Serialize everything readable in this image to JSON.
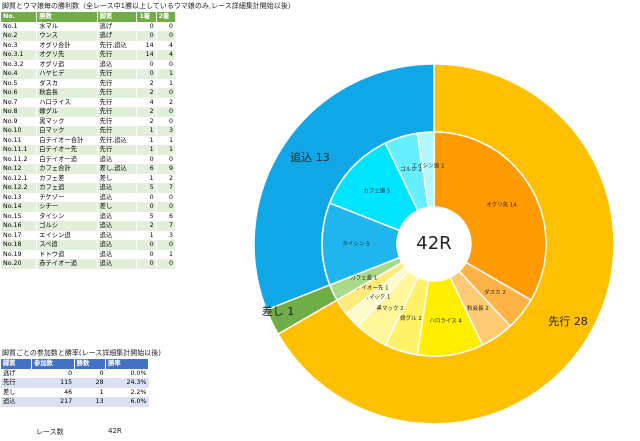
{
  "title": "脚質とウマ娘毎の勝利数（全レース中1勝以上しているウマ娘のみ,レース詳細集計開始以後）",
  "table1": {
    "headers": [
      "No.",
      "勝数",
      "脚質",
      "1着",
      "2着"
    ],
    "rows": [
      [
        "No.1",
        "水マル",
        "逃げ",
        "0",
        "0"
      ],
      [
        "No.2",
        "ウンス",
        "逃げ",
        "0",
        "0"
      ],
      [
        "No.3",
        "オグリ合計",
        "先行,追込",
        "14",
        "4"
      ],
      [
        "No.3.1",
        "オグリ先",
        "先行",
        "14",
        "4"
      ],
      [
        "No.3.2",
        "オグリ追",
        "追込",
        "0",
        "0"
      ],
      [
        "No.4",
        "ハヤヒデ",
        "先行",
        "0",
        "1"
      ],
      [
        "No.5",
        "ダスカ",
        "先行",
        "2",
        "1"
      ],
      [
        "No.6",
        "秋会長",
        "先行",
        "2",
        "0"
      ],
      [
        "No.7",
        "ハロライス",
        "先行",
        "4",
        "2"
      ],
      [
        "No.8",
        "嫁グル",
        "先行",
        "2",
        "0"
      ],
      [
        "No.9",
        "黒マック",
        "先行",
        "2",
        "0"
      ],
      [
        "No.10",
        "白マック",
        "先行",
        "1",
        "3"
      ],
      [
        "No.11",
        "白テイオー合計",
        "先行,追込",
        "1",
        "1"
      ],
      [
        "No.11.1",
        "白テイオー先",
        "先行",
        "1",
        "1"
      ],
      [
        "No.11.2",
        "白テイオー追",
        "追込",
        "0",
        "0"
      ],
      [
        "No.12",
        "カフェ合計",
        "差し,追込",
        "6",
        "9"
      ],
      [
        "No.12.1",
        "カフェ差",
        "差し",
        "1",
        "2"
      ],
      [
        "No.12.2",
        "カフェ追",
        "追込",
        "5",
        "7"
      ],
      [
        "No.13",
        "チケゾー",
        "追込",
        "0",
        "0"
      ],
      [
        "No.14",
        "シチー",
        "差し",
        "0",
        "0"
      ],
      [
        "No.15",
        "タイシン",
        "追込",
        "5",
        "6"
      ],
      [
        "No.16",
        "ゴルシ",
        "追込",
        "2",
        "7"
      ],
      [
        "No.17",
        "エイシン追",
        "追込",
        "1",
        "3"
      ],
      [
        "No.18",
        "スペ追",
        "追込",
        "0",
        "0"
      ],
      [
        "No.19",
        "ドトウ追",
        "追込",
        "0",
        "1"
      ],
      [
        "No.20",
        "赤テイオー追",
        "追込",
        "0",
        "0"
      ]
    ]
  },
  "title2": "脚質ごとの参加数と勝率(レース詳細集計開始以後)",
  "table2": {
    "headers": [
      "脚質",
      "参加数",
      "勝数",
      "勝率"
    ],
    "rows": [
      [
        "逃げ",
        "0",
        "0",
        "0.0%"
      ],
      [
        "先行",
        "115",
        "28",
        "24.3%"
      ],
      [
        "差し",
        "46",
        "1",
        "2.2%"
      ],
      [
        "追込",
        "217",
        "13",
        "6.0%"
      ]
    ]
  },
  "race_label": "レース数",
  "race_value": "42R",
  "chart_data": {
    "type": "pie",
    "center_label": "42R",
    "outer": [
      {
        "label": "先行",
        "value": 28,
        "color": "#ffc000"
      },
      {
        "label": "差し",
        "value": 1,
        "color": "#70ad47"
      },
      {
        "label": "追込",
        "value": 13,
        "color": "#0fa7e8"
      }
    ],
    "inner": [
      {
        "label": "オグリ先 14",
        "value": 14,
        "color": "#ff9a00"
      },
      {
        "label": "ダスカ 2",
        "value": 2,
        "color": "#ffb347"
      },
      {
        "label": "秋会長 2",
        "value": 2,
        "color": "#ffca74"
      },
      {
        "label": "ハロライス 4",
        "value": 4,
        "color": "#ffee00"
      },
      {
        "label": "嫁グル 2",
        "value": 2,
        "color": "#fff266"
      },
      {
        "label": "黒マック 2",
        "value": 2,
        "color": "#fff799"
      },
      {
        "label": "白マック 1",
        "value": 1,
        "color": "#fffacc"
      },
      {
        "label": "白テイオー先 1",
        "value": 1,
        "color": "#ffeb7a"
      },
      {
        "label": "カフェ差 1",
        "value": 1,
        "color": "#a9d98b"
      },
      {
        "label": "タイシン 5",
        "value": 5,
        "color": "#1fb6f0"
      },
      {
        "label": "カフェ追 5",
        "value": 5,
        "color": "#00e5ff"
      },
      {
        "label": "ゴルシ 2",
        "value": 2,
        "color": "#66f0ff"
      },
      {
        "label": "エイシン追 1",
        "value": 1,
        "color": "#b3f7ff"
      }
    ],
    "outer_labels": [
      "先行 28",
      "差し 1",
      "追込 13"
    ]
  }
}
